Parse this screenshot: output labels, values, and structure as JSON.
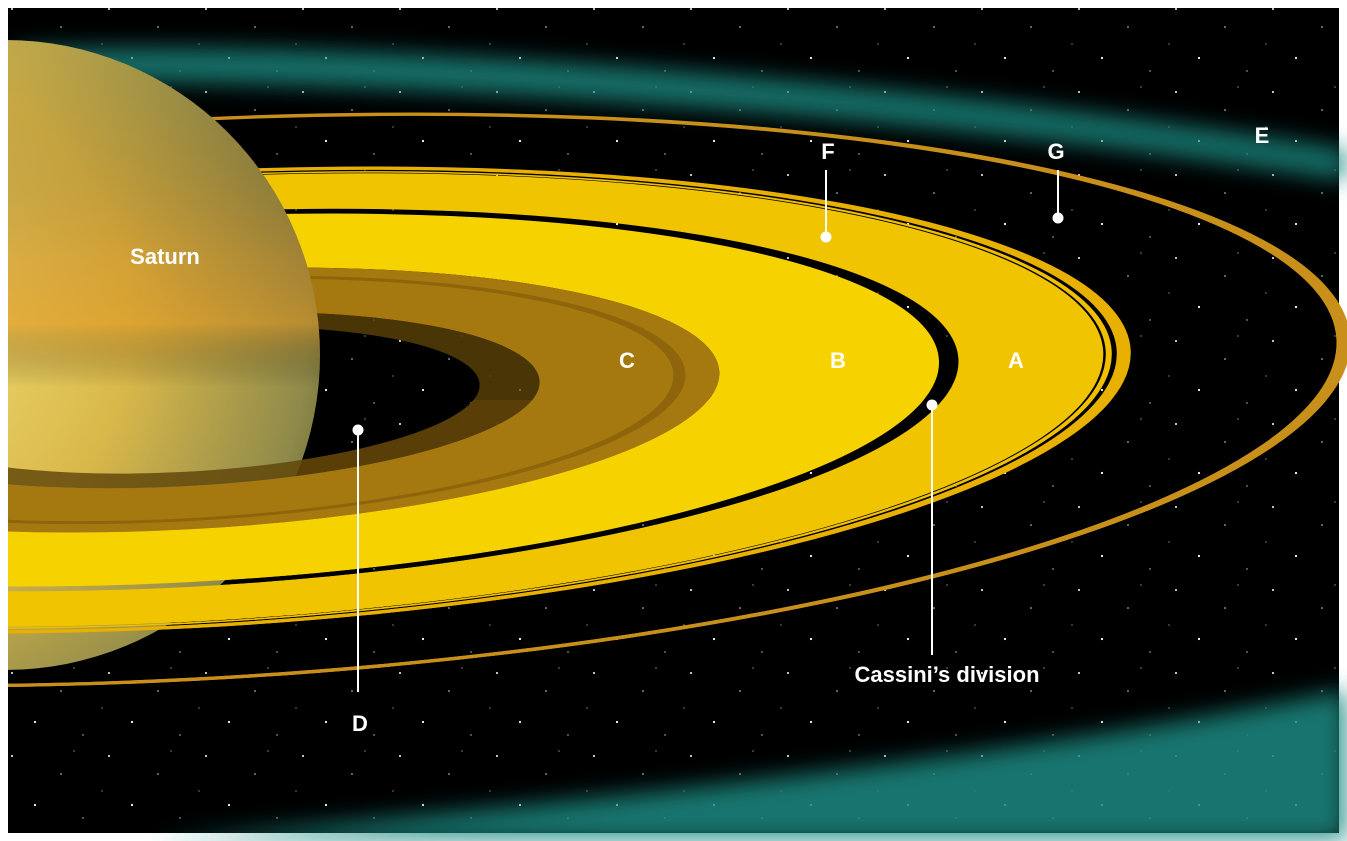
{
  "labels": {
    "saturn": "Saturn",
    "a": "A",
    "b": "B",
    "c": "C",
    "d": "D",
    "e": "E",
    "f": "F",
    "g": "G",
    "cassini": "Cassini’s division"
  }
}
